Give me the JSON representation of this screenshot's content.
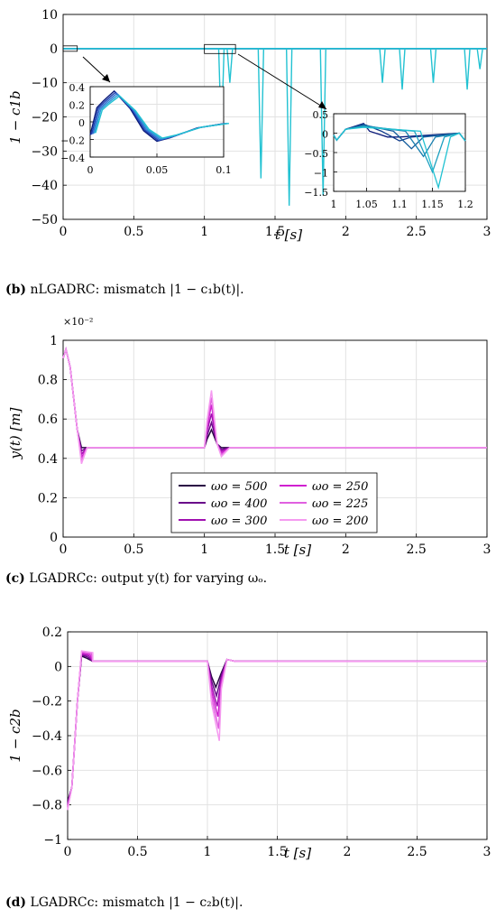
{
  "captions": {
    "b_tag": "(b)",
    "b_text": " nLGADRC: mismatch |1 − c₁b(t)|.",
    "c_tag": "(c)",
    "c_text": " LGADRCc: output y(t) for varying ωₒ.",
    "d_tag": "(d)",
    "d_text": " LGADRCc: mismatch |1 − c₂b(t)|."
  },
  "colors": {
    "blues": [
      "#0a1a7a",
      "#1f3fb0",
      "#2f6fd0",
      "#2a9ad8",
      "#22c2d2"
    ],
    "purples": [
      "#2a0844",
      "#6a0a8a",
      "#a010b0",
      "#d020d0",
      "#e060e0",
      "#f59af0"
    ],
    "grid": "#e2e2e2"
  },
  "chart_data": [
    {
      "id": "b",
      "type": "line",
      "xlabel": "t [s]",
      "ylabel": "1 − c1b",
      "xlim": [
        0,
        3
      ],
      "ylim": [
        -50,
        10
      ],
      "xticks": [
        "0",
        "0.5",
        "1",
        "1.5",
        "2",
        "2.5",
        "3"
      ],
      "yticks": [
        "10",
        "0",
        "−10",
        "−20",
        "−30",
        "−40",
        "−50"
      ],
      "grid": true,
      "spikes": [
        {
          "t": 1.12,
          "v": -26
        },
        {
          "t": 1.18,
          "v": -10
        },
        {
          "t": 1.4,
          "v": -38
        },
        {
          "t": 1.6,
          "v": -46
        },
        {
          "t": 1.84,
          "v": -43
        },
        {
          "t": 2.26,
          "v": -10
        },
        {
          "t": 2.4,
          "v": -12
        },
        {
          "t": 2.62,
          "v": -10
        },
        {
          "t": 2.86,
          "v": -12
        },
        {
          "t": 2.95,
          "v": -6
        }
      ],
      "insets": [
        {
          "xlim": [
            0,
            0.1
          ],
          "ylim": [
            -0.4,
            0.4
          ],
          "xticks": [
            "0",
            "0.05",
            "0.1"
          ],
          "yticks": [
            "0.4",
            "0.2",
            "0",
            "−0.2",
            "−0.4"
          ],
          "series_values": [
            {
              "t": [
                0,
                0.005,
                0.01,
                0.018,
                0.03,
                0.04,
                0.05,
                0.06,
                0.08,
                0.1
              ],
              "v": [
                -0.15,
                0.16,
                0.24,
                0.35,
                0.15,
                -0.1,
                -0.22,
                -0.18,
                -0.07,
                -0.02
              ]
            }
          ]
        },
        {
          "xlim": [
            1,
            1.22
          ],
          "ylim": [
            -1.5,
            0.5
          ],
          "xticks": [
            "1",
            "1.05",
            "1.1",
            "1.15",
            "1.2"
          ],
          "yticks": [
            "0.5",
            "0",
            "−0.5",
            "−1",
            "−1.5"
          ]
        }
      ]
    },
    {
      "id": "c",
      "type": "line",
      "xlabel": "t [s]",
      "ylabel": "y(t) [m]",
      "exponent": "×10⁻²",
      "xlim": [
        0,
        3
      ],
      "ylim": [
        0,
        1.1
      ],
      "xticks": [
        "0",
        "0.5",
        "1",
        "1.5",
        "2",
        "2.5",
        "3"
      ],
      "yticks": [
        "1",
        "0.8",
        "0.6",
        "0.4",
        "0.2",
        "0"
      ],
      "grid": true,
      "series": [
        {
          "name": "ωo = 500",
          "peak": 0.6
        },
        {
          "name": "ωo = 400",
          "peak": 0.64
        },
        {
          "name": "ωo = 300",
          "peak": 0.69
        },
        {
          "name": "ωo = 250",
          "peak": 0.74
        },
        {
          "name": "ωo = 225",
          "peak": 0.78
        },
        {
          "name": "ωo = 200",
          "peak": 0.82
        }
      ],
      "legend_labels": [
        "ωo = 500",
        "ωo = 400",
        "ωo = 300",
        "ωo = 250",
        "ωo = 225",
        "ωo = 200"
      ],
      "steady": 0.5,
      "initial": 1.05
    },
    {
      "id": "d",
      "type": "line",
      "xlabel": "t [s]",
      "ylabel": "1 − c2b",
      "xlim": [
        0,
        3
      ],
      "ylim": [
        -1,
        0.2
      ],
      "xticks": [
        "0",
        "0.5",
        "1",
        "1.5",
        "2",
        "2.5",
        "3"
      ],
      "yticks": [
        "0.2",
        "0",
        "−0.2",
        "−0.4",
        "−0.6",
        "−0.8",
        "−1"
      ],
      "grid": true,
      "series_dips": [
        -0.12,
        -0.17,
        -0.23,
        -0.29,
        -0.36,
        -0.43
      ],
      "steady": 0.03
    }
  ]
}
